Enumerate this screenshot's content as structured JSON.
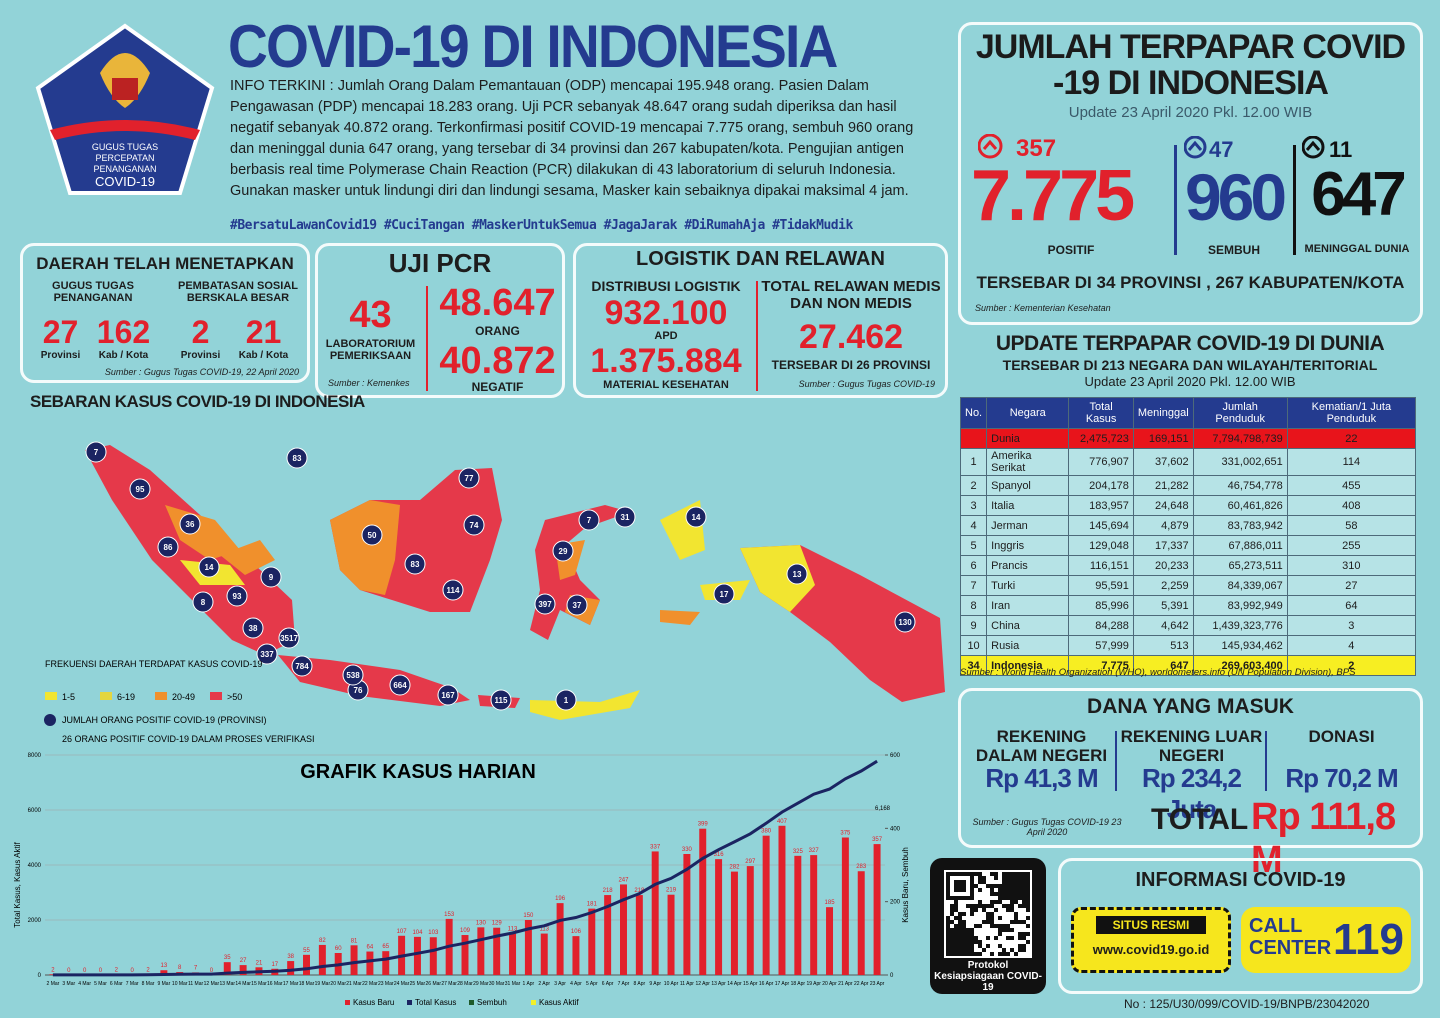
{
  "header": {
    "title": "COVID-19 DI INDONESIA",
    "logo_lines": [
      "GUGUS TUGAS",
      "PERCEPATAN",
      "PENANGANAN",
      "COVID-19"
    ]
  },
  "info": {
    "paragraph": "INFO TERKINI : Jumlah Orang Dalam Pemantauan (ODP) mencapai 195.948 orang. Pasien Dalam Pengawasan (PDP) mencapai 18.283 orang. Uji PCR sebanyak 48.647 orang sudah diperiksa dan hasil negatif sebanyak 40.872 orang. Terkonfirmasi positif COVID-19 mencapai 7.775 orang, sembuh 960 orang dan meninggal dunia 647 orang, yang tersebar di 34 provinsi dan 267 kabupaten/kota. Pengujian antigen berbasis real time Polymerase Chain Reaction (PCR) dilakukan di 43 laboratorium di seluruh Indonesia. Gunakan masker untuk lindungi diri dan lindungi sesama, Masker kain sebaiknya dipakai maksimal 4 jam.",
    "hashtags": "#BersatuLawanCovid19 #CuciTangan #MaskerUntukSemua #JagaJarak #DiRumahAja #TidakMudik"
  },
  "regions": {
    "title": "DAERAH TELAH MENETAPKAN",
    "gugus": {
      "label": "GUGUS TUGAS PENANGANAN",
      "provinsi": "27",
      "kab_kota": "162"
    },
    "psbb": {
      "label": "PEMBATASAN SOSIAL BERSKALA BESAR",
      "provinsi": "2",
      "kab_kota": "21"
    },
    "unit_provinsi": "Provinsi",
    "unit_kab_kota": "Kab / Kota",
    "source": "Sumber : Gugus Tugas COVID-19, 22 April 2020"
  },
  "pcr": {
    "title": "UJI PCR",
    "labs": "43",
    "labs_label": "LABORATORIUM PEMERIKSAAN",
    "tested": "48.647",
    "tested_label": "ORANG",
    "negative": "40.872",
    "negative_label": "NEGATIF",
    "source": "Sumber : Kemenkes"
  },
  "logistics": {
    "title": "LOGISTIK DAN RELAWAN",
    "distribution_label": "DISTRIBUSI LOGISTIK",
    "apd": "932.100",
    "apd_label": "APD",
    "material": "1.375.884",
    "material_label": "MATERIAL KESEHATAN",
    "volunteer_label": "TOTAL RELAWAN MEDIS DAN NON MEDIS",
    "volunteers": "27.462",
    "volunteer_spread": "TERSEBAR DI 26 PROVINSI",
    "source": "Sumber : Gugus Tugas COVID-19"
  },
  "map": {
    "title": "SEBARAN KASUS COVID-19 DI INDONESIA",
    "markers": [
      "7",
      "95",
      "36",
      "86",
      "14",
      "9",
      "8",
      "93",
      "38",
      "3517",
      "337",
      "76",
      "784",
      "538",
      "664",
      "167",
      "115",
      "1",
      "83",
      "50",
      "77",
      "74",
      "83",
      "114",
      "7",
      "31",
      "29",
      "397",
      "37",
      "14",
      "17",
      "13",
      "130"
    ],
    "legend": {
      "title": "FREKUENSI DAERAH TERDAPAT KASUS COVID-19",
      "levels": [
        {
          "label": "1-5",
          "color": "#f2e530"
        },
        {
          "label": "6-19",
          "color": "#e3d640"
        },
        {
          "label": "20-49",
          "color": "#f0902c"
        },
        {
          "label": ">50",
          "color": "#e5394a"
        }
      ],
      "marker_label": "JUMLAH ORANG POSITIF COVID-19 (PROVINSI)",
      "verification": "26 ORANG POSITIF COVID-19 DALAM PROSES VERIFIKASI"
    }
  },
  "daily_chart": {
    "type": "bar",
    "title": "GRAFIK KASUS HARIAN",
    "y_label": "Total Kasus, Kasus Aktif",
    "y2_label": "Kasus Baru, Sembuh",
    "categories": [
      "2 Mar",
      "3 Mar",
      "4 Mar",
      "5 Mar",
      "6 Mar",
      "7 Mar",
      "8 Mar",
      "9 Mar",
      "10 Mar",
      "11 Mar",
      "12 Mar",
      "13 Mar",
      "14 Mar",
      "15 Mar",
      "16 Mar",
      "17 Mar",
      "18 Mar",
      "19 Mar",
      "20 Mar",
      "21 Mar",
      "22 Mar",
      "23 Mar",
      "24 Mar",
      "25 Mar",
      "26 Mar",
      "27 Mar",
      "28 Mar",
      "29 Mar",
      "30 Mar",
      "31 Mar",
      "1 Apr",
      "2 Apr",
      "3 Apr",
      "4 Apr",
      "5 Apr",
      "6 Apr",
      "7 Apr",
      "8 Apr",
      "9 Apr",
      "10 Apr",
      "11 Apr",
      "12 Apr",
      "13 Apr",
      "14 Apr",
      "15 Apr",
      "16 Apr",
      "17 Apr",
      "18 Apr",
      "19 Apr",
      "20 Apr",
      "21 Apr",
      "22 Apr",
      "23 Apr"
    ],
    "ylim": [
      0,
      8000
    ],
    "yticks": [
      0,
      2000,
      4000,
      6000,
      8000
    ],
    "y2lim": [
      0,
      600
    ],
    "y2ticks": [
      0,
      200,
      400,
      600
    ],
    "series": [
      {
        "name": "Kasus Baru",
        "color": "#e1212c",
        "axis": "y2",
        "kind": "bar",
        "values": [
          2,
          0,
          0,
          0,
          2,
          0,
          2,
          13,
          8,
          7,
          0,
          35,
          27,
          21,
          17,
          38,
          55,
          82,
          60,
          81,
          64,
          65,
          107,
          104,
          103,
          153,
          109,
          130,
          129,
          113,
          150,
          113,
          196,
          106,
          181,
          218,
          247,
          218,
          337,
          219,
          330,
          399,
          316,
          282,
          297,
          380,
          407,
          325,
          327,
          185,
          375,
          283,
          357
        ]
      },
      {
        "name": "Total Kasus",
        "color": "#1b2462",
        "kind": "line",
        "values": [
          2,
          2,
          2,
          2,
          4,
          4,
          6,
          19,
          27,
          34,
          34,
          69,
          96,
          117,
          134,
          172,
          227,
          309,
          369,
          450,
          514,
          579,
          686,
          790,
          893,
          1046,
          1155,
          1285,
          1414,
          1528,
          1677,
          1790,
          1986,
          2092,
          2273,
          2491,
          2738,
          2956,
          3293,
          3512,
          3842,
          4241,
          4557,
          4839,
          5136,
          5516,
          5923,
          6248,
          6575,
          6760,
          7135,
          7418,
          7775
        ]
      }
    ],
    "legend": [
      {
        "name": "Sembuh",
        "color": "#1e5a2a"
      },
      {
        "name": "Kasus Aktif",
        "color": "#f2f02a"
      }
    ],
    "annotation": "6,168"
  },
  "summary": {
    "title": "JUMLAH TERPAPAR COVID -19 DI INDONESIA",
    "update": "Update 23 April 2020 Pkl. 12.00 WIB",
    "positive": {
      "delta": "357",
      "value": "7.775",
      "label": "POSITIF"
    },
    "recovered": {
      "delta": "47",
      "value": "960",
      "label": "SEMBUH"
    },
    "deaths": {
      "delta": "11",
      "value": "647",
      "label": "MENINGGAL DUNIA"
    },
    "spread": "TERSEBAR DI 34 PROVINSI , 267 KABUPATEN/KOTA",
    "source": "Sumber : Kementerian Kesehatan"
  },
  "world": {
    "title": "UPDATE TERPAPAR COVID-19 DI DUNIA",
    "subtitle": "TERSEBAR DI 213 NEGARA DAN WILAYAH/TERITORIAL",
    "update": "Update 23 April 2020 Pkl. 12.00 WIB",
    "table": {
      "header": [
        "No.",
        "Negara",
        "Total Kasus",
        "Meninggal",
        "Jumlah Penduduk",
        "Kematian/1 Juta Penduduk"
      ],
      "rows": [
        [
          "",
          "Dunia",
          "2,475,723",
          "169,151",
          "7,794,798,739",
          "22"
        ],
        [
          "1",
          "Amerika Serikat",
          "776,907",
          "37,602",
          "331,002,651",
          "114"
        ],
        [
          "2",
          "Spanyol",
          "204,178",
          "21,282",
          "46,754,778",
          "455"
        ],
        [
          "3",
          "Italia",
          "183,957",
          "24,648",
          "60,461,826",
          "408"
        ],
        [
          "4",
          "Jerman",
          "145,694",
          "4,879",
          "83,783,942",
          "58"
        ],
        [
          "5",
          "Inggris",
          "129,048",
          "17,337",
          "67,886,011",
          "255"
        ],
        [
          "6",
          "Prancis",
          "116,151",
          "20,233",
          "65,273,511",
          "310"
        ],
        [
          "7",
          "Turki",
          "95,591",
          "2,259",
          "84,339,067",
          "27"
        ],
        [
          "8",
          "Iran",
          "85,996",
          "5,391",
          "83,992,949",
          "64"
        ],
        [
          "9",
          "China",
          "84,288",
          "4,642",
          "1,439,323,776",
          "3"
        ],
        [
          "10",
          "Rusia",
          "57,999",
          "513",
          "145,934,462",
          "4"
        ],
        [
          "34",
          "Indonesia",
          "7,775",
          "647",
          "269,603,400",
          "2"
        ]
      ]
    },
    "source": "Sumber : World Health Organization (WHO), worldometers.info (UN Population Division), BPS"
  },
  "funds": {
    "title": "DANA YANG MASUK",
    "columns": [
      {
        "label": "REKENING DALAM NEGERI",
        "value": "Rp 41,3 M"
      },
      {
        "label": "REKENING LUAR NEGERI",
        "value": "Rp 234,2 Juta"
      },
      {
        "label": "DONASI",
        "value": "Rp 70,2 M"
      }
    ],
    "source": "Sumber : Gugus Tugas COVID-19 23 April 2020",
    "total_label": "TOTAL",
    "total": "Rp 111,8 M"
  },
  "qr": {
    "caption": "Protokol Kesiapsiagaan COVID-19"
  },
  "contact": {
    "title": "INFORMASI COVID-19",
    "website_label": "SITUS RESMI",
    "website": "www.covid19.go.id",
    "call_label": "CALL CENTER",
    "call_number": "119"
  },
  "footer": {
    "doc_number": "No : 125/U30/099/COVID-19/BNPB/23042020"
  }
}
